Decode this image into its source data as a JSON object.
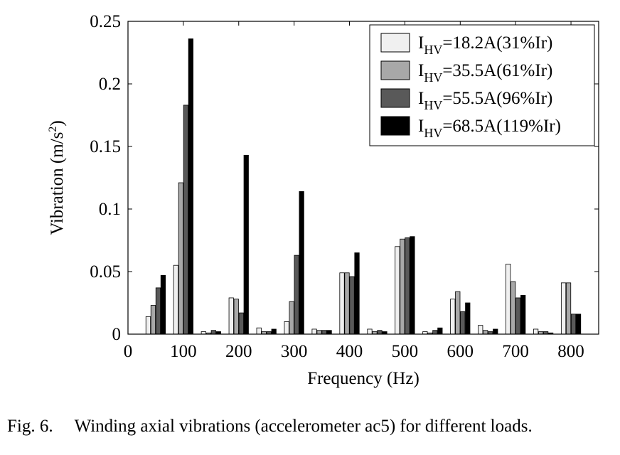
{
  "chart_data": {
    "type": "bar",
    "title": "",
    "xlabel": "Frequency (Hz)",
    "ylabel_main": "Vibration (m/s",
    "ylabel_sup": "2",
    "ylabel_close": ")",
    "xlim": [
      0,
      850
    ],
    "ylim": [
      0,
      0.25
    ],
    "x_ticks": [
      0,
      100,
      200,
      300,
      400,
      500,
      600,
      700,
      800
    ],
    "x_tick_labels": [
      "0",
      "100",
      "200",
      "300",
      "400",
      "500",
      "600",
      "700",
      "800"
    ],
    "y_ticks": [
      0,
      0.05,
      0.1,
      0.15,
      0.2,
      0.25
    ],
    "y_tick_labels": [
      "0",
      "0.05",
      "0.1",
      "0.15",
      "0.2",
      "0.25"
    ],
    "grid": false,
    "legend_position": "top-right",
    "categories": [
      50,
      100,
      150,
      200,
      250,
      300,
      350,
      400,
      450,
      500,
      550,
      600,
      650,
      700,
      750,
      800
    ],
    "series": [
      {
        "name": "I_HV=18.2A(31%Ir)",
        "legend_prefix": "I",
        "legend_sub": "HV",
        "legend_suffix": "=18.2A(31%Ir)",
        "color": "#f0f0f0",
        "values": [
          0.014,
          0.055,
          0.002,
          0.029,
          0.005,
          0.01,
          0.004,
          0.049,
          0.004,
          0.07,
          0.002,
          0.028,
          0.007,
          0.056,
          0.004,
          0.041
        ]
      },
      {
        "name": "I_HV=35.5A(61%Ir)",
        "legend_prefix": "I",
        "legend_sub": "HV",
        "legend_suffix": "=35.5A(61%Ir)",
        "color": "#a8a8a8",
        "values": [
          0.023,
          0.121,
          0.001,
          0.028,
          0.002,
          0.026,
          0.003,
          0.049,
          0.002,
          0.076,
          0.001,
          0.034,
          0.003,
          0.042,
          0.002,
          0.041
        ]
      },
      {
        "name": "I_HV=55.5A(96%Ir)",
        "legend_prefix": "I",
        "legend_sub": "HV",
        "legend_suffix": "=55.5A(96%Ir)",
        "color": "#595959",
        "values": [
          0.037,
          0.183,
          0.003,
          0.017,
          0.002,
          0.063,
          0.003,
          0.046,
          0.003,
          0.077,
          0.003,
          0.018,
          0.002,
          0.029,
          0.002,
          0.016
        ]
      },
      {
        "name": "I_HV=68.5A(119%Ir)",
        "legend_prefix": "I",
        "legend_sub": "HV",
        "legend_suffix": "=68.5A(119%Ir)",
        "color": "#000000",
        "values": [
          0.047,
          0.236,
          0.002,
          0.143,
          0.004,
          0.114,
          0.003,
          0.065,
          0.002,
          0.078,
          0.005,
          0.025,
          0.004,
          0.031,
          0.001,
          0.016
        ]
      }
    ]
  },
  "caption": {
    "label": "Fig. 6.",
    "text": "Winding axial vibrations (accelerometer ac5) for different loads."
  }
}
